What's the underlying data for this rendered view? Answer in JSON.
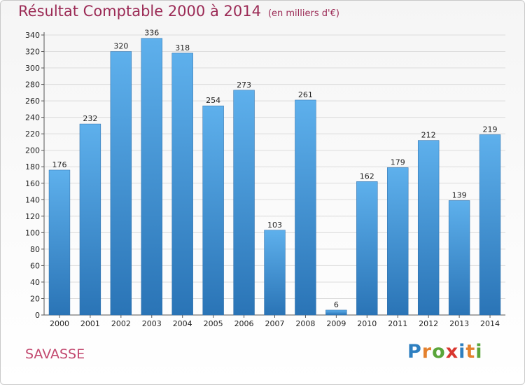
{
  "title": "Résultat Comptable 2000 à 2014",
  "subtitle": "(en milliers d'€)",
  "commune": "SAVASSE",
  "logo": {
    "letters": [
      {
        "ch": "P",
        "color": "#2e7fc0"
      },
      {
        "ch": "r",
        "color": "#e4812e"
      },
      {
        "ch": "o",
        "color": "#5aa53a"
      },
      {
        "ch": "x",
        "color": "#d9362f"
      },
      {
        "ch": "i",
        "color": "#2e7fc0"
      },
      {
        "ch": "t",
        "color": "#e4812e"
      },
      {
        "ch": "i",
        "color": "#5aa53a"
      }
    ]
  },
  "colors": {
    "bar_top": "#5eb0ec",
    "bar_bottom": "#2a74b6",
    "grid": "#dcdcdc",
    "axis": "#555555"
  },
  "chart_data": {
    "type": "bar",
    "categories": [
      "2000",
      "2001",
      "2002",
      "2003",
      "2004",
      "2005",
      "2006",
      "2007",
      "2008",
      "2009",
      "2010",
      "2011",
      "2012",
      "2013",
      "2014"
    ],
    "values": [
      176,
      232,
      320,
      336,
      318,
      254,
      273,
      103,
      261,
      6,
      162,
      179,
      212,
      139,
      219
    ],
    "ylim": [
      0,
      340
    ],
    "yticks": [
      0,
      20,
      40,
      60,
      80,
      100,
      120,
      140,
      160,
      180,
      200,
      220,
      240,
      260,
      280,
      300,
      320,
      340
    ],
    "grid": true
  }
}
